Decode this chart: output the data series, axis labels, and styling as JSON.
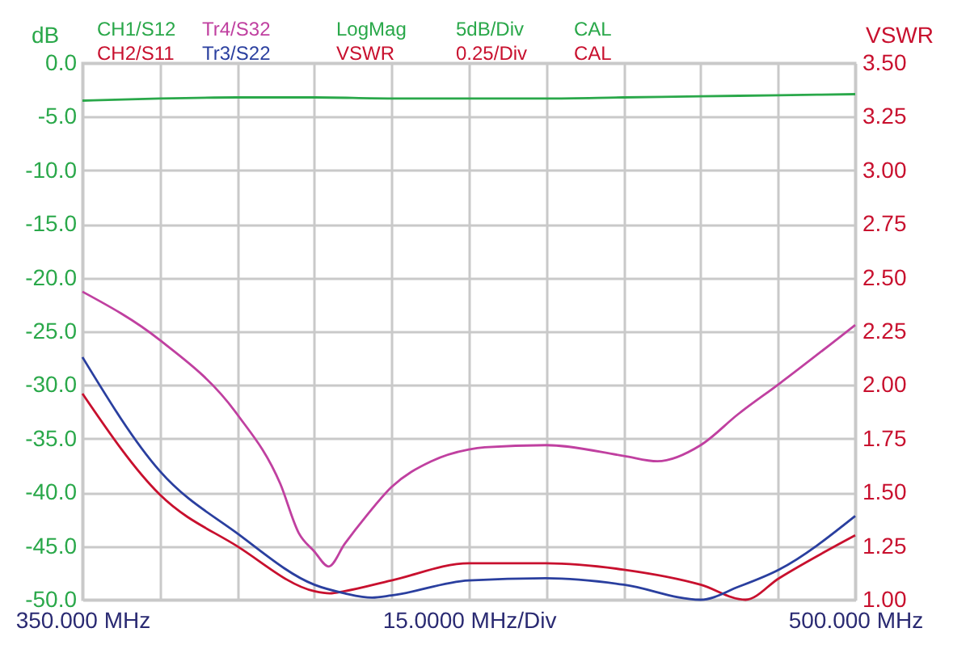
{
  "chart_data": {
    "type": "line",
    "xlabel": "15.0000 MHz/Div",
    "ylabel": "dB",
    "y2label": "VSWR",
    "annotations": [
      "LogMag",
      "5dB/Div",
      "CAL",
      "VSWR",
      "0.25/Div",
      "CAL"
    ],
    "xlim": [
      350,
      500
    ],
    "xticks": [
      {
        "value": 350,
        "label": "350.000 MHz"
      },
      {
        "value": 365,
        "label": null
      },
      {
        "value": 380,
        "label": null
      },
      {
        "value": 395,
        "label": null
      },
      {
        "value": 410,
        "label": null
      },
      {
        "value": 425,
        "label": null
      },
      {
        "value": 440,
        "label": null
      },
      {
        "value": 455,
        "label": null
      },
      {
        "value": 470,
        "label": null
      },
      {
        "value": 485,
        "label": null
      },
      {
        "value": 500,
        "label": "500.000 MHz"
      }
    ],
    "ylim": [
      -50,
      0
    ],
    "yticks": [
      {
        "value": -50,
        "label": "-50.0"
      },
      {
        "value": -45,
        "label": "-45.0"
      },
      {
        "value": -40,
        "label": "-40.0"
      },
      {
        "value": -35,
        "label": "-35.0"
      },
      {
        "value": -30,
        "label": "-30.0"
      },
      {
        "value": -25,
        "label": "-25.0"
      },
      {
        "value": -20,
        "label": "-20.0"
      },
      {
        "value": -15,
        "label": "-15.0"
      },
      {
        "value": -10,
        "label": "-10.0"
      },
      {
        "value": -5,
        "label": "-5.0"
      },
      {
        "value": 0,
        "label": "0.0"
      }
    ],
    "y2lim": [
      1,
      3.5
    ],
    "y2ticks": [
      {
        "value": 1,
        "label": "1.00"
      },
      {
        "value": 1.25,
        "label": "1.25"
      },
      {
        "value": 1.5,
        "label": "1.50"
      },
      {
        "value": 1.75,
        "label": "1.75"
      },
      {
        "value": 2,
        "label": "2.00"
      },
      {
        "value": 2.25,
        "label": "2.25"
      },
      {
        "value": 2.5,
        "label": "2.50"
      },
      {
        "value": 2.75,
        "label": "2.75"
      },
      {
        "value": 3,
        "label": "3.00"
      },
      {
        "value": 3.25,
        "label": "3.25"
      },
      {
        "value": 3.5,
        "label": "3.50"
      }
    ],
    "grid": true,
    "series": [
      {
        "name": "CH1/S12",
        "color": "#2aa84a",
        "x": [
          350,
          365,
          380,
          395,
          410,
          425,
          440,
          455,
          470,
          485,
          500
        ],
        "values": [
          -3.5,
          -3.3,
          -3.2,
          -3.2,
          -3.3,
          -3.3,
          -3.3,
          -3.2,
          -3.1,
          -3.0,
          -2.9
        ]
      },
      {
        "name": "Tr4/S32",
        "color": "#c040a0",
        "x": [
          350,
          365,
          380,
          388.4,
          392,
          395,
          397.8,
          400.9,
          405.1,
          410,
          417.7,
          425,
          428.1,
          440,
          455.1,
          461.6,
          470,
          477.3,
          485.2,
          500
        ],
        "values": [
          -21.3,
          -25.8,
          -32.7,
          -39.2,
          -43.8,
          -45.5,
          -46.9,
          -44.8,
          -42.2,
          -39.5,
          -37.1,
          -36.0,
          -35.8,
          -35.6,
          -36.6,
          -37.1,
          -35.6,
          -32.7,
          -29.9,
          -24.4
        ]
      },
      {
        "name": "CH2/S11",
        "color": "#c8102e",
        "axis": "y2",
        "x": [
          350,
          365,
          380,
          395,
          398,
          400.9,
          410,
          425,
          440,
          455.1,
          470,
          478.7,
          485.2,
          500
        ],
        "values": [
          1.96,
          1.49,
          1.25,
          1.04,
          1.03,
          1.04,
          1.09,
          1.17,
          1.17,
          1.14,
          1.07,
          1.0,
          1.1,
          1.3
        ]
      },
      {
        "name": "Tr3/S22",
        "color": "#2a3f9f",
        "axis": "y2",
        "x": [
          350,
          365,
          380,
          395,
          400.9,
          406.2,
          410,
          425,
          440,
          455.1,
          470,
          477.3,
          485.2,
          500
        ],
        "values": [
          2.13,
          1.6,
          1.31,
          1.07,
          1.03,
          1.01,
          1.02,
          1.09,
          1.1,
          1.07,
          1.0,
          1.06,
          1.14,
          1.39
        ]
      }
    ]
  }
}
